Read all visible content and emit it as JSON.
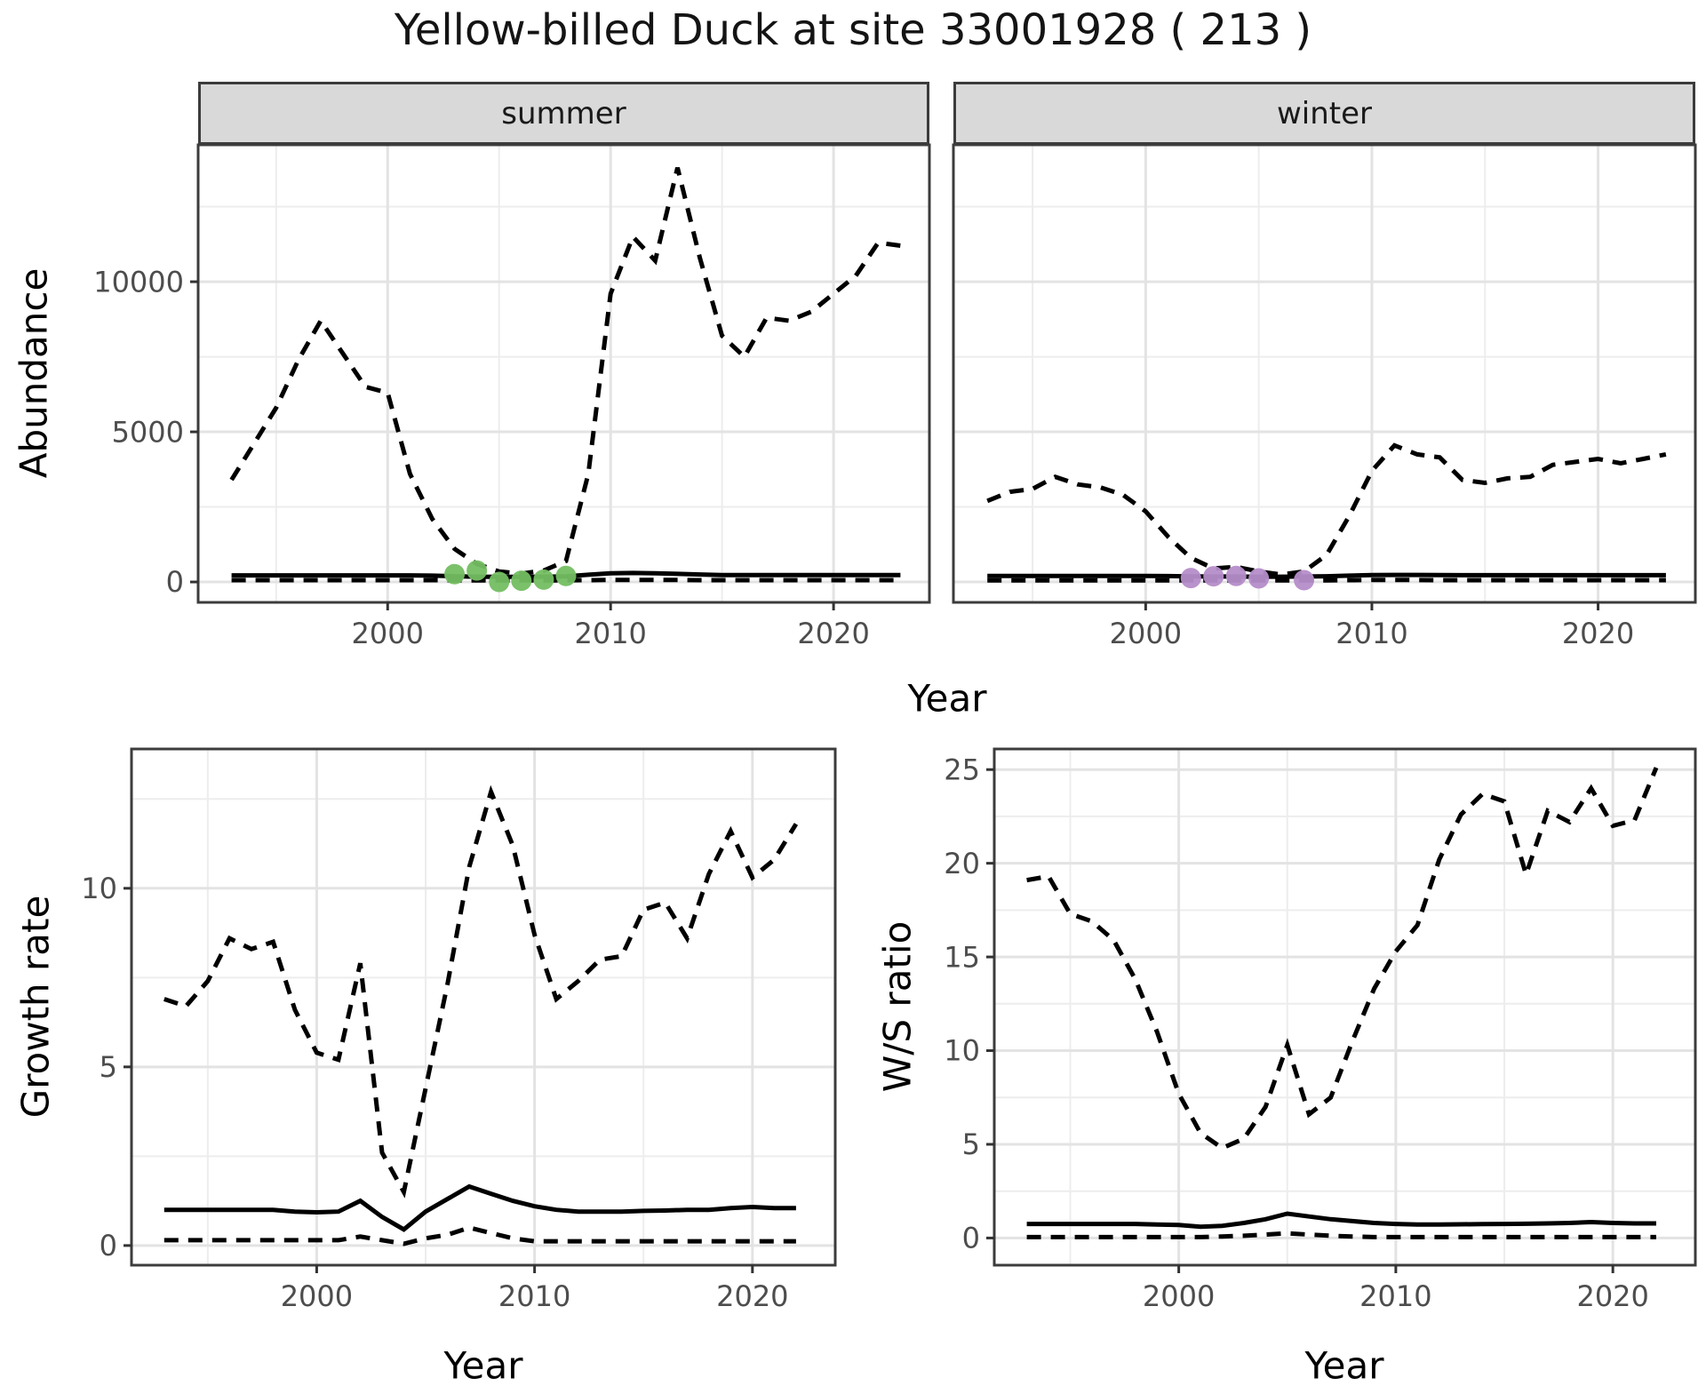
{
  "figure": {
    "title": "Yellow-billed Duck at site 33001928 ( 213 )",
    "top_row": {
      "ylabel": "Abundance",
      "xlabel": "Year",
      "facets": [
        "summer",
        "winter"
      ]
    },
    "bottom_row": {
      "left_ylabel": "Growth rate",
      "right_ylabel": "W/S ratio",
      "xlabel": "Year"
    }
  },
  "colors": {
    "line": "#000000",
    "grid_major": "#e3e3e3",
    "grid_minor": "#ededed",
    "panel_border": "#3c3c3c",
    "tick_mark": "#333333",
    "tick_text": "#4d4d4d",
    "strip_bg": "#d9d9d9",
    "summer_points": "#74be62",
    "winter_points": "#b58dc9"
  },
  "chart_data": [
    {
      "id": "abundance_summer",
      "type": "line",
      "facet_label": "summer",
      "xlabel": "Year",
      "ylabel": "Abundance",
      "xlim": [
        1991.5,
        2024.3
      ],
      "ylim": [
        -680,
        14560
      ],
      "xticks": [
        2000,
        2010,
        2020
      ],
      "xtick_labels": [
        "2000",
        "2010",
        "2020"
      ],
      "xticks_minor": [
        1995,
        2005,
        2015
      ],
      "yticks": [
        0,
        5000,
        10000
      ],
      "ytick_labels": [
        "0",
        "5000",
        "10000"
      ],
      "yticks_minor": [
        2500,
        7500,
        12500
      ],
      "x": [
        1993,
        1994,
        1995,
        1996,
        1997,
        1998,
        1999,
        2000,
        2001,
        2002,
        2003,
        2004,
        2005,
        2006,
        2007,
        2008,
        2009,
        2010,
        2011,
        2012,
        2013,
        2014,
        2015,
        2016,
        2017,
        2018,
        2019,
        2020,
        2021,
        2022,
        2023
      ],
      "series": [
        {
          "name": "upper_95CI",
          "style": "dashed",
          "values": [
            3400,
            4600,
            5800,
            7400,
            8700,
            7600,
            6500,
            6300,
            3600,
            2100,
            1100,
            600,
            350,
            280,
            380,
            700,
            3600,
            9600,
            11500,
            10700,
            13800,
            10800,
            8200,
            7500,
            8800,
            8700,
            9000,
            9600,
            10200,
            11300,
            11200
          ]
        },
        {
          "name": "median",
          "style": "solid",
          "values": [
            220,
            220,
            220,
            220,
            220,
            220,
            220,
            220,
            220,
            210,
            190,
            175,
            170,
            170,
            175,
            185,
            240,
            290,
            300,
            290,
            270,
            250,
            230,
            230,
            230,
            230,
            230,
            230,
            230,
            230,
            230
          ]
        },
        {
          "name": "lower_95CI",
          "style": "dashed",
          "values": [
            60,
            60,
            60,
            60,
            60,
            60,
            60,
            60,
            60,
            60,
            55,
            50,
            50,
            50,
            50,
            55,
            60,
            70,
            70,
            70,
            65,
            60,
            60,
            60,
            60,
            60,
            60,
            60,
            60,
            60,
            60
          ]
        }
      ],
      "points": {
        "name": "observed_counts",
        "color": "#74be62",
        "x": [
          2003,
          2004,
          2005,
          2006,
          2007,
          2008
        ],
        "y": [
          260,
          380,
          0,
          40,
          80,
          200
        ]
      }
    },
    {
      "id": "abundance_winter",
      "type": "line",
      "facet_label": "winter",
      "xlabel": "Year",
      "ylabel": "Abundance",
      "xlim": [
        1991.5,
        2024.3
      ],
      "ylim": [
        -680,
        14560
      ],
      "xticks": [
        2000,
        2010,
        2020
      ],
      "xtick_labels": [
        "2000",
        "2010",
        "2020"
      ],
      "xticks_minor": [
        1995,
        2005,
        2015
      ],
      "yticks": [
        0,
        5000,
        10000
      ],
      "ytick_labels": [
        "0",
        "5000",
        "10000"
      ],
      "yticks_minor": [
        2500,
        7500,
        12500
      ],
      "x": [
        1993,
        1994,
        1995,
        1996,
        1997,
        1998,
        1999,
        2000,
        2001,
        2002,
        2003,
        2004,
        2005,
        2006,
        2007,
        2008,
        2009,
        2010,
        2011,
        2012,
        2013,
        2014,
        2015,
        2016,
        2017,
        2018,
        2019,
        2020,
        2021,
        2022,
        2023
      ],
      "series": [
        {
          "name": "upper_95CI",
          "style": "dashed",
          "values": [
            2700,
            3000,
            3100,
            3500,
            3250,
            3150,
            2900,
            2350,
            1500,
            800,
            450,
            500,
            350,
            250,
            350,
            900,
            2200,
            3700,
            4550,
            4250,
            4150,
            3400,
            3300,
            3450,
            3500,
            3900,
            4000,
            4100,
            3950,
            4100,
            4250
          ]
        },
        {
          "name": "median",
          "style": "solid",
          "values": [
            200,
            200,
            200,
            200,
            200,
            200,
            200,
            200,
            195,
            185,
            180,
            180,
            175,
            175,
            180,
            190,
            210,
            230,
            235,
            235,
            230,
            225,
            225,
            225,
            225,
            225,
            225,
            225,
            225,
            225,
            225
          ]
        },
        {
          "name": "lower_95CI",
          "style": "dashed",
          "values": [
            55,
            55,
            55,
            55,
            55,
            55,
            55,
            55,
            55,
            50,
            50,
            50,
            50,
            50,
            50,
            55,
            60,
            65,
            65,
            65,
            60,
            60,
            60,
            60,
            60,
            60,
            60,
            60,
            60,
            60,
            60
          ]
        }
      ],
      "points": {
        "name": "observed_counts",
        "color": "#b58dc9",
        "x": [
          2002,
          2003,
          2004,
          2005,
          2007
        ],
        "y": [
          130,
          190,
          200,
          120,
          60
        ]
      }
    },
    {
      "id": "growth_rate",
      "type": "line",
      "xlabel": "Year",
      "ylabel": "Growth rate",
      "xlim": [
        1991.5,
        2023.8
      ],
      "ylim": [
        -0.55,
        13.9
      ],
      "xticks": [
        2000,
        2010,
        2020
      ],
      "xtick_labels": [
        "2000",
        "2010",
        "2020"
      ],
      "xticks_minor": [
        1995,
        2005,
        2015
      ],
      "yticks": [
        0,
        5,
        10
      ],
      "ytick_labels": [
        "0",
        "5",
        "10"
      ],
      "yticks_minor": [
        2.5,
        7.5,
        12.5
      ],
      "x": [
        1993,
        1994,
        1995,
        1996,
        1997,
        1998,
        1999,
        2000,
        2001,
        2002,
        2003,
        2004,
        2005,
        2006,
        2007,
        2008,
        2009,
        2010,
        2011,
        2012,
        2013,
        2014,
        2015,
        2016,
        2017,
        2018,
        2019,
        2020,
        2021,
        2022
      ],
      "series": [
        {
          "name": "upper_95CI",
          "style": "dashed",
          "values": [
            6.9,
            6.7,
            7.4,
            8.6,
            8.3,
            8.5,
            6.6,
            5.4,
            5.2,
            7.9,
            2.6,
            1.5,
            4.4,
            7.3,
            10.6,
            12.7,
            11.2,
            8.7,
            6.9,
            7.4,
            8.0,
            8.1,
            9.4,
            9.6,
            8.6,
            10.4,
            11.6,
            10.3,
            10.8,
            11.8
          ]
        },
        {
          "name": "median",
          "style": "solid",
          "values": [
            1.0,
            1.0,
            1.0,
            1.0,
            1.0,
            1.0,
            0.95,
            0.93,
            0.95,
            1.25,
            0.8,
            0.45,
            0.95,
            1.3,
            1.65,
            1.45,
            1.25,
            1.1,
            1.0,
            0.95,
            0.95,
            0.95,
            0.97,
            0.98,
            1.0,
            1.0,
            1.05,
            1.08,
            1.05,
            1.05
          ]
        },
        {
          "name": "lower_95CI",
          "style": "dashed",
          "values": [
            0.15,
            0.15,
            0.15,
            0.15,
            0.15,
            0.15,
            0.15,
            0.15,
            0.15,
            0.25,
            0.15,
            0.05,
            0.2,
            0.3,
            0.5,
            0.35,
            0.2,
            0.12,
            0.12,
            0.12,
            0.12,
            0.12,
            0.12,
            0.12,
            0.12,
            0.12,
            0.12,
            0.12,
            0.12,
            0.12
          ]
        }
      ]
    },
    {
      "id": "ws_ratio",
      "type": "line",
      "xlabel": "Year",
      "ylabel": "W/S ratio",
      "xlim": [
        1991.5,
        2023.8
      ],
      "ylim": [
        -1.45,
        26.1
      ],
      "xticks": [
        2000,
        2010,
        2020
      ],
      "xtick_labels": [
        "2000",
        "2010",
        "2020"
      ],
      "xticks_minor": [
        1995,
        2005,
        2015
      ],
      "yticks": [
        0,
        5,
        10,
        15,
        20,
        25
      ],
      "ytick_labels": [
        "0",
        "5",
        "10",
        "15",
        "20",
        "25"
      ],
      "yticks_minor": [
        2.5,
        7.5,
        12.5,
        17.5,
        22.5
      ],
      "x": [
        1993,
        1994,
        1995,
        1996,
        1997,
        1998,
        1999,
        2000,
        2001,
        2002,
        2003,
        2004,
        2005,
        2006,
        2007,
        2008,
        2009,
        2010,
        2011,
        2012,
        2013,
        2014,
        2015,
        2016,
        2017,
        2018,
        2019,
        2020,
        2021,
        2022
      ],
      "series": [
        {
          "name": "upper_95CI",
          "style": "dashed",
          "values": [
            19.1,
            19.3,
            17.3,
            16.9,
            15.9,
            13.8,
            11.0,
            7.7,
            5.6,
            4.8,
            5.3,
            7.0,
            10.3,
            6.6,
            7.5,
            10.5,
            13.3,
            15.3,
            16.7,
            20.2,
            22.6,
            23.7,
            23.3,
            19.4,
            22.8,
            22.2,
            24.0,
            22.0,
            22.3,
            25.1
          ]
        },
        {
          "name": "median",
          "style": "solid",
          "values": [
            0.75,
            0.75,
            0.75,
            0.75,
            0.75,
            0.75,
            0.72,
            0.7,
            0.6,
            0.65,
            0.8,
            1.0,
            1.3,
            1.15,
            1.0,
            0.9,
            0.8,
            0.75,
            0.72,
            0.72,
            0.73,
            0.74,
            0.75,
            0.76,
            0.78,
            0.8,
            0.85,
            0.8,
            0.78,
            0.78
          ]
        },
        {
          "name": "lower_95CI",
          "style": "dashed",
          "values": [
            0.05,
            0.05,
            0.05,
            0.05,
            0.05,
            0.05,
            0.05,
            0.05,
            0.05,
            0.08,
            0.12,
            0.18,
            0.25,
            0.18,
            0.12,
            0.08,
            0.05,
            0.05,
            0.05,
            0.05,
            0.05,
            0.05,
            0.05,
            0.05,
            0.05,
            0.05,
            0.05,
            0.05,
            0.05,
            0.05
          ]
        }
      ]
    }
  ]
}
